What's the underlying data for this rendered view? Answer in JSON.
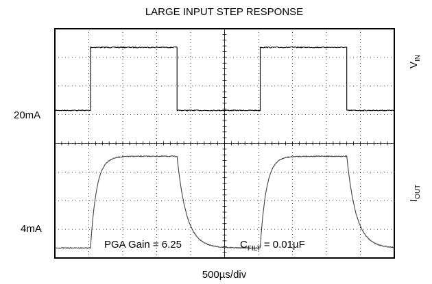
{
  "chart_data": {
    "type": "line",
    "title": "LARGE INPUT STEP RESPONSE",
    "xlabel": "500µs/div",
    "time_per_div_us": 500,
    "divisions": {
      "x": 10,
      "y": 8
    },
    "grid": true,
    "x_units": "div",
    "channels": [
      {
        "name_main": "V",
        "name_sub": "IN",
        "color": "#000000",
        "baseline_div": 5.15,
        "high_div": 7.35,
        "low_div": 5.15
      },
      {
        "name_main": "I",
        "name_sub": "OUT",
        "color": "#404040",
        "baseline_div": 0.35,
        "high_div": 3.55,
        "low_div": 0.35
      }
    ],
    "rising_edges_div": [
      1.05,
      6.05
    ],
    "falling_edges_div": [
      3.6,
      8.6
    ],
    "level_labels": [
      {
        "text": "20mA",
        "level_div": 3.55
      },
      {
        "text": "4mA",
        "level_div": 0.35
      }
    ],
    "annotations": {
      "pga_gain": "PGA Gain = 6.25",
      "cfilt_main": "C",
      "cfilt_sub": "FILT",
      "cfilt_value": " = 0.01µF"
    }
  }
}
